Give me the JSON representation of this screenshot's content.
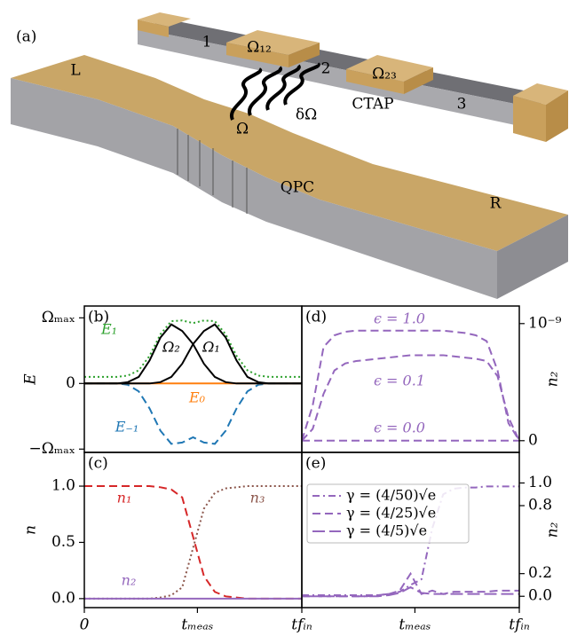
{
  "illustration": {
    "labels": [
      "(a)",
      "1",
      "Ω₁₂",
      "2",
      "Ω₂₃",
      "CTAP",
      "3",
      "L",
      "δΩ",
      "Ω",
      "QPC",
      "R"
    ]
  },
  "chart_data": [
    {
      "type": "line",
      "panel": "(b)",
      "ylabel": "E",
      "yaxis": "left",
      "xlim": [
        0,
        1
      ],
      "ylim": [
        -1.05,
        1.18
      ],
      "yticks": [
        {
          "value": -1,
          "label": "−Ωₘₐₓ"
        },
        0,
        {
          "value": 1,
          "label": "Ωₘₐₓ"
        }
      ],
      "x": [
        0,
        0.05,
        0.1,
        0.15,
        0.2,
        0.25,
        0.3,
        0.35,
        0.4,
        0.45,
        0.5,
        0.55,
        0.6,
        0.65,
        0.7,
        0.75,
        0.8,
        0.85,
        0.9,
        0.95,
        1
      ],
      "series": [
        {
          "color": "#2ca02c",
          "dash": "dotted",
          "values": [
            0.1,
            0.1,
            0.1,
            0.1,
            0.12,
            0.2,
            0.42,
            0.75,
            0.95,
            0.96,
            0.92,
            0.96,
            0.95,
            0.75,
            0.42,
            0.2,
            0.12,
            0.1,
            0.1,
            0.1,
            0.1
          ]
        },
        {
          "color": "#1f77b4",
          "dash": "dashed",
          "values": [
            0,
            0,
            0,
            0,
            -0.02,
            -0.12,
            -0.38,
            -0.72,
            -0.92,
            -0.9,
            -0.82,
            -0.9,
            -0.92,
            -0.72,
            -0.38,
            -0.12,
            -0.02,
            0,
            0,
            0,
            0
          ]
        },
        {
          "color": "#ff7f0e",
          "dash": "solid",
          "values": [
            0,
            0,
            0,
            0,
            0,
            0,
            0,
            0,
            0,
            0,
            0,
            0,
            0,
            0,
            0,
            0,
            0,
            0,
            0,
            0,
            0
          ]
        },
        {
          "color": "#000000",
          "dash": "solid",
          "values": [
            0,
            0,
            0,
            0,
            0.02,
            0.1,
            0.35,
            0.7,
            0.9,
            0.8,
            0.6,
            0.3,
            0.1,
            0.02,
            0,
            0,
            0,
            0,
            0,
            0,
            0
          ]
        },
        {
          "color": "#000000",
          "dash": "solid",
          "values": [
            0,
            0,
            0,
            0,
            0,
            0,
            0,
            0.02,
            0.1,
            0.3,
            0.6,
            0.8,
            0.9,
            0.7,
            0.35,
            0.1,
            0.02,
            0,
            0,
            0,
            0
          ]
        }
      ],
      "annotations": [
        {
          "text": "E₁",
          "color": "#2ca02c"
        },
        {
          "text": "Ω₂",
          "color": "#000000"
        },
        {
          "text": "Ω₁",
          "color": "#000000"
        },
        {
          "text": "E₀",
          "color": "#ff7f0e"
        },
        {
          "text": "E₋₁",
          "color": "#1f77b4"
        }
      ]
    },
    {
      "type": "line",
      "panel": "(c)",
      "ylabel": "n",
      "yaxis": "left",
      "xlim": [
        0,
        1
      ],
      "ylim": [
        -0.08,
        1.3
      ],
      "yticks": [
        {
          "value": 0,
          "label": "0.0"
        },
        0.5,
        {
          "value": 1,
          "label": "1.0"
        }
      ],
      "xticks": [
        0,
        {
          "value": 0.52,
          "label": "tₘₑₐₛ"
        },
        {
          "value": 1,
          "label": "tfᵢₙ"
        }
      ],
      "x": [
        0,
        0.05,
        0.1,
        0.15,
        0.2,
        0.25,
        0.3,
        0.35,
        0.4,
        0.45,
        0.5,
        0.55,
        0.6,
        0.65,
        0.7,
        0.75,
        0.8,
        0.85,
        0.9,
        0.95,
        1
      ],
      "series": [
        {
          "color": "#d62728",
          "dash": "dashed",
          "values": [
            1,
            1,
            1,
            1,
            1,
            1,
            1,
            0.99,
            0.97,
            0.9,
            0.55,
            0.2,
            0.06,
            0.02,
            0.01,
            0,
            0,
            0,
            0,
            0,
            0
          ]
        },
        {
          "color": "#8c564b",
          "dash": "dotted",
          "values": [
            0,
            0,
            0,
            0,
            0,
            0,
            0,
            0.01,
            0.03,
            0.1,
            0.45,
            0.8,
            0.94,
            0.98,
            0.99,
            1,
            1,
            1,
            1,
            1,
            1
          ]
        },
        {
          "color": "#9467bd",
          "dash": "solid",
          "values": [
            0,
            0,
            0,
            0,
            0,
            0,
            0,
            0,
            0,
            0,
            0,
            0,
            0,
            0,
            0,
            0,
            0,
            0,
            0,
            0,
            0
          ]
        }
      ],
      "annotations": [
        {
          "text": "n₁",
          "color": "#d62728"
        },
        {
          "text": "n₃",
          "color": "#8c564b"
        },
        {
          "text": "n₂",
          "color": "#9467bd"
        }
      ]
    },
    {
      "type": "line",
      "panel": "(d)",
      "ylabel": "n₂",
      "yaxis": "right",
      "xlim": [
        0,
        1
      ],
      "ylim": [
        -1e-10,
        1.15e-09
      ],
      "yticks": [
        0,
        {
          "value": 1e-09,
          "label": "10⁻⁹"
        }
      ],
      "x": [
        0,
        0.05,
        0.1,
        0.15,
        0.2,
        0.25,
        0.3,
        0.35,
        0.4,
        0.45,
        0.5,
        0.55,
        0.6,
        0.65,
        0.7,
        0.75,
        0.8,
        0.85,
        0.9,
        0.95,
        1
      ],
      "series": [
        {
          "color": "#9467bd",
          "dash": "dashed",
          "values": [
            0,
            3e-10,
            8e-10,
            9e-10,
            9.3e-10,
            9.4e-10,
            9.4e-10,
            9.4e-10,
            9.4e-10,
            9.4e-10,
            9.4e-10,
            9.4e-10,
            9.4e-10,
            9.4e-10,
            9.3e-10,
            9.2e-10,
            9e-10,
            8.5e-10,
            6e-10,
            1.5e-10,
            0
          ]
        },
        {
          "color": "#9467bd",
          "dash": "dashed",
          "values": [
            0,
            1e-10,
            4e-10,
            6e-10,
            6.6e-10,
            6.8e-10,
            6.9e-10,
            7e-10,
            7.1e-10,
            7.2e-10,
            7.3e-10,
            7.3e-10,
            7.3e-10,
            7.3e-10,
            7.2e-10,
            7.1e-10,
            7e-10,
            6.8e-10,
            5.5e-10,
            2e-10,
            0
          ]
        },
        {
          "color": "#9467bd",
          "dash": "dashed",
          "values": [
            0,
            0,
            0,
            0,
            0,
            0,
            0,
            0,
            0,
            0,
            0,
            0,
            0,
            0,
            0,
            0,
            0,
            0,
            0,
            0,
            0
          ]
        }
      ],
      "annotations": [
        {
          "text": "ϵ = 1.0",
          "color": "#9467bd"
        },
        {
          "text": "ϵ = 0.1",
          "color": "#9467bd"
        },
        {
          "text": "ϵ = 0.0",
          "color": "#9467bd"
        }
      ]
    },
    {
      "type": "line",
      "panel": "(e)",
      "ylabel": "n₂",
      "yaxis": "right",
      "xlim": [
        0,
        1
      ],
      "ylim": [
        -0.1,
        1.27
      ],
      "yticks": [
        {
          "value": 0,
          "label": "0.0"
        },
        0.2,
        0.8,
        {
          "value": 1,
          "label": "1.0"
        }
      ],
      "xticks": [
        {
          "value": 0.52,
          "label": "tₘₑₐₛ"
        },
        {
          "value": 1,
          "label": "tfᵢₙ"
        }
      ],
      "legend": "upper left",
      "x": [
        0,
        0.05,
        0.1,
        0.15,
        0.2,
        0.25,
        0.3,
        0.35,
        0.4,
        0.45,
        0.5,
        0.55,
        0.6,
        0.65,
        0.7,
        0.75,
        0.8,
        0.85,
        0.9,
        0.95,
        1
      ],
      "series": [
        {
          "name": "γ = (4/50)√e",
          "color": "#9467bd",
          "dash": "dashdot",
          "values": [
            0.01,
            0.01,
            0.01,
            0.01,
            0.01,
            0.01,
            0.01,
            0.01,
            0.02,
            0.04,
            0.1,
            0.15,
            0.6,
            0.9,
            0.95,
            0.96,
            0.96,
            0.97,
            0.97,
            0.97,
            0.97
          ]
        },
        {
          "name": "γ = (4/25)√e",
          "color": "#9467bd",
          "dash": "dashed",
          "values": [
            0,
            0,
            0,
            0,
            0,
            0,
            0,
            0.01,
            0.02,
            0.05,
            0.2,
            0.02,
            0.05,
            0.02,
            0.04,
            0.04,
            0.04,
            0.04,
            0.05,
            0.05,
            0.05
          ]
        },
        {
          "name": "γ = (4/5)√e",
          "color": "#9467bd",
          "dash": "longdash",
          "values": [
            0,
            0,
            0,
            0,
            0,
            0,
            0,
            0,
            0.01,
            0.03,
            0.08,
            0.03,
            0.02,
            0.02,
            0.02,
            0.02,
            0.02,
            0.02,
            0.02,
            0.02,
            0.02
          ]
        }
      ]
    }
  ]
}
